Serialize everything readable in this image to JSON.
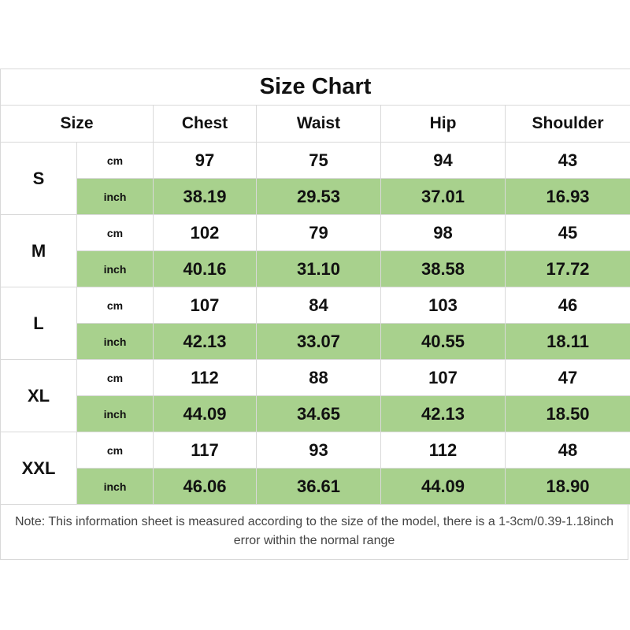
{
  "title": "Size Chart",
  "headers": {
    "size": "Size",
    "chest": "Chest",
    "waist": "Waist",
    "hip": "Hip",
    "shoulder": "Shoulder"
  },
  "units": {
    "cm": "cm",
    "inch": "inch"
  },
  "rows": [
    {
      "size": "S",
      "cm": [
        "97",
        "75",
        "94",
        "43"
      ],
      "inch": [
        "38.19",
        "29.53",
        "37.01",
        "16.93"
      ]
    },
    {
      "size": "M",
      "cm": [
        "102",
        "79",
        "98",
        "45"
      ],
      "inch": [
        "40.16",
        "31.10",
        "38.58",
        "17.72"
      ]
    },
    {
      "size": "L",
      "cm": [
        "107",
        "84",
        "103",
        "46"
      ],
      "inch": [
        "42.13",
        "33.07",
        "40.55",
        "18.11"
      ]
    },
    {
      "size": "XL",
      "cm": [
        "112",
        "88",
        "107",
        "47"
      ],
      "inch": [
        "44.09",
        "34.65",
        "42.13",
        "18.50"
      ]
    },
    {
      "size": "XXL",
      "cm": [
        "117",
        "93",
        "112",
        "48"
      ],
      "inch": [
        "46.06",
        "36.61",
        "44.09",
        "18.90"
      ]
    }
  ],
  "note": "Note: This information sheet is measured according to the size of the model, there is a 1-3cm/0.39-1.18inch error within the normal range",
  "colors": {
    "inch_row_bg": "#a8d18d",
    "border": "#d9d9d9"
  }
}
